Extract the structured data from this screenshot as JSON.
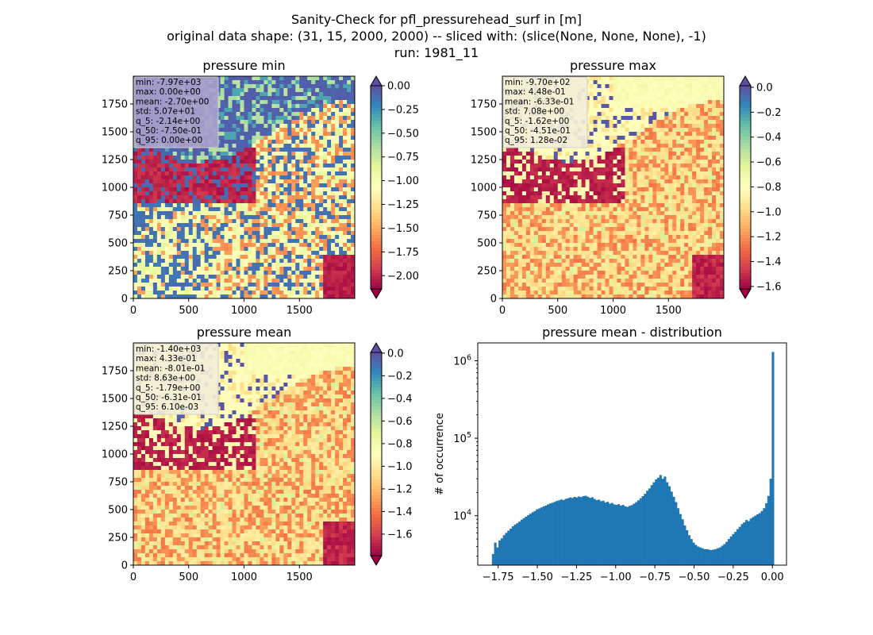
{
  "figure": {
    "title_lines": [
      "Sanity-Check for pfl_pressurehead_surf in [m]",
      "original data shape: (31, 15, 2000, 2000) -- sliced with: (slice(None, None, None), -1)",
      "run: 1981_11"
    ]
  },
  "colormap": {
    "name": "Spectral",
    "stops": [
      "#9e0142",
      "#d53e4f",
      "#f46d43",
      "#fdae61",
      "#fee08b",
      "#ffffbf",
      "#e6f598",
      "#abdda4",
      "#66c2a5",
      "#3288bd",
      "#5e4fa2"
    ]
  },
  "chart_data": [
    {
      "type": "heatmap",
      "title": "pressure min",
      "xlim": [
        0,
        2000
      ],
      "ylim": [
        0,
        2000
      ],
      "xticks": [
        "0",
        "500",
        "1000",
        "1500"
      ],
      "yticks": [
        "0",
        "250",
        "500",
        "750",
        "1000",
        "1250",
        "1500",
        "1750"
      ],
      "clim": [
        -2.14,
        0.0
      ],
      "colorbar_ticks": [
        "0.00",
        "-0.25",
        "-0.50",
        "-0.75",
        "-1.00",
        "-1.25",
        "-1.50",
        "-1.75",
        "-2.00"
      ],
      "colorbar_extend": "both",
      "stats": [
        "min: -7.97e+03",
        "max: 0.00e+00",
        "mean: -2.70e+00",
        "std: 5.07e+01",
        "q_5: -2.14e+00",
        "q_50: -7.50e-01",
        "q_95: 0.00e+00"
      ],
      "stats_box_color": "#a8a0cc"
    },
    {
      "type": "heatmap",
      "title": "pressure max",
      "xlim": [
        0,
        2000
      ],
      "ylim": [
        0,
        2000
      ],
      "xticks": [
        "0",
        "500",
        "1000",
        "1500"
      ],
      "yticks": [
        "0",
        "250",
        "500",
        "750",
        "1000",
        "1250",
        "1500",
        "1750"
      ],
      "clim": [
        -1.62,
        0.0128
      ],
      "colorbar_ticks": [
        "0.0",
        "-0.2",
        "-0.4",
        "-0.6",
        "-0.8",
        "-1.0",
        "-1.2",
        "-1.4",
        "-1.6"
      ],
      "colorbar_extend": "both",
      "stats": [
        "min: -9.70e+02",
        "max: 4.48e-01",
        "mean: -6.33e-01",
        "std: 7.08e+00",
        "q_5: -1.62e+00",
        "q_50: -4.51e-01",
        "q_95: 1.28e-02"
      ],
      "stats_box_color": "#f2efd8"
    },
    {
      "type": "heatmap",
      "title": "pressure mean",
      "xlim": [
        0,
        2000
      ],
      "ylim": [
        0,
        2000
      ],
      "xticks": [
        "0",
        "500",
        "1000",
        "1500"
      ],
      "yticks": [
        "0",
        "250",
        "500",
        "750",
        "1000",
        "1250",
        "1500",
        "1750"
      ],
      "clim": [
        -1.79,
        0.0061
      ],
      "colorbar_ticks": [
        "0.0",
        "-0.2",
        "-0.4",
        "-0.6",
        "-0.8",
        "-1.0",
        "-1.2",
        "-1.4",
        "-1.6"
      ],
      "colorbar_extend": "both",
      "stats": [
        "min: -1.40e+03",
        "max: 4.33e-01",
        "mean: -8.01e-01",
        "std: 8.63e+00",
        "q_5: -1.79e+00",
        "q_50: -6.31e-01",
        "q_95: 6.10e-03"
      ],
      "stats_box_color": "#f2efd8"
    },
    {
      "type": "bar",
      "title": "pressure mean - distribution",
      "ylabel": "# of occurrence",
      "xlabel": "",
      "yscale": "log",
      "xlim": [
        -1.88,
        0.09
      ],
      "ylim": [
        2300,
        1700000
      ],
      "xticks": [
        "−1.75",
        "−1.50",
        "−1.25",
        "−1.00",
        "−0.75",
        "−0.50",
        "−0.25",
        "0.00"
      ],
      "xtick_values": [
        -1.75,
        -1.5,
        -1.25,
        -1.0,
        -0.75,
        -0.5,
        -0.25,
        0.0
      ],
      "yticks": [
        "10^4",
        "10^5",
        "10^6"
      ],
      "ytick_values": [
        10000,
        100000,
        1000000
      ],
      "bar_color": "#1f77b4",
      "bin_edges_range": [
        -1.79,
        0.01
      ],
      "values": [
        3200,
        4500,
        3900,
        4800,
        5100,
        5600,
        6000,
        6400,
        6800,
        7300,
        7700,
        8000,
        8400,
        8900,
        9300,
        9700,
        10200,
        10600,
        11100,
        11500,
        12100,
        12400,
        12800,
        13200,
        13500,
        14000,
        14400,
        14700,
        15100,
        15500,
        15800,
        16200,
        15900,
        16500,
        16800,
        17200,
        16900,
        17500,
        17200,
        17700,
        17400,
        17900,
        18100,
        17600,
        17000,
        17300,
        16500,
        15900,
        16100,
        15400,
        15600,
        14800,
        15100,
        14300,
        14600,
        14000,
        13800,
        14100,
        13500,
        13800,
        13200,
        13000,
        13400,
        13700,
        14300,
        15000,
        15800,
        16800,
        17900,
        19200,
        21000,
        22500,
        24800,
        27000,
        29500,
        31000,
        33500,
        30000,
        32000,
        27000,
        24000,
        20500,
        17500,
        15000,
        12500,
        10500,
        9000,
        7500,
        6500,
        5600,
        5000,
        4500,
        4200,
        4000,
        3900,
        3800,
        3700,
        3700,
        3650,
        3600,
        3650,
        3700,
        3800,
        3900,
        4100,
        4300,
        4600,
        5000,
        5400,
        5800,
        6200,
        6700,
        7200,
        7800,
        8200,
        8800,
        8500,
        9200,
        9600,
        10000,
        10400,
        10800,
        11500,
        12500,
        14500,
        18000,
        30000,
        1300000
      ]
    }
  ]
}
